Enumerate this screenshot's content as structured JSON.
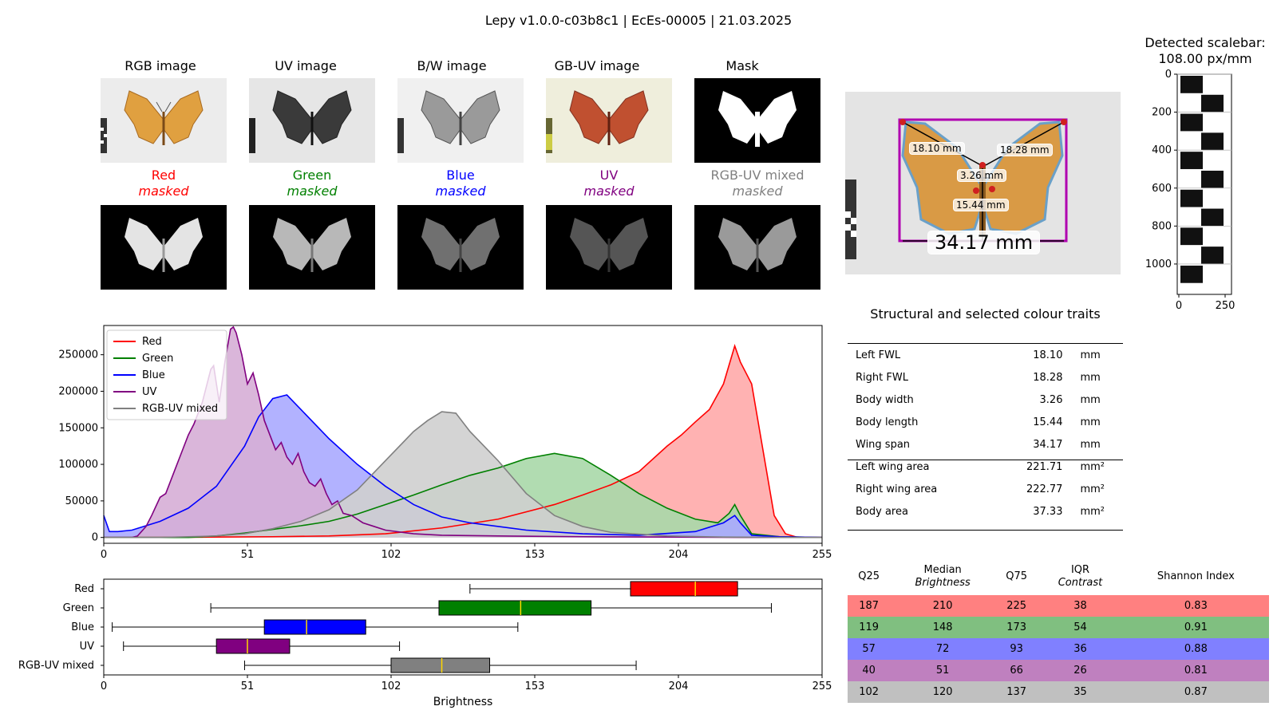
{
  "header": {
    "title": "Lepy v1.0.0-c03b8c1 | EcEs-00005 | 21.03.2025"
  },
  "image_panels": {
    "rgb": "RGB image",
    "uv": "UV image",
    "bw": "B/W image",
    "gbuv": "GB-UV image",
    "mask": "Mask"
  },
  "masked_panels": [
    {
      "name": "Red",
      "sub": "masked",
      "color": "#ff0000"
    },
    {
      "name": "Green",
      "sub": "masked",
      "color": "#008000"
    },
    {
      "name": "Blue",
      "sub": "masked",
      "color": "#0000ff"
    },
    {
      "name": "UV",
      "sub": "masked",
      "color": "#800080"
    },
    {
      "name": "RGB-UV mixed",
      "sub": "masked",
      "color": "#808080"
    }
  ],
  "measurement_overlay": {
    "labels": [
      "18.10 mm",
      "18.28 mm",
      "3.26 mm",
      "15.44 mm",
      "34.17 mm"
    ]
  },
  "scalebar": {
    "title_line1": "Detected scalebar:",
    "title_line2": "108.00 px/mm",
    "y_ticks": [
      "0",
      "200",
      "400",
      "600",
      "800",
      "1000"
    ],
    "x_ticks": [
      "0",
      "250"
    ]
  },
  "traits": {
    "title": "Structural and selected colour traits",
    "rows": [
      {
        "label": "Left FWL",
        "value": "18.10",
        "unit": "mm"
      },
      {
        "label": "Right FWL",
        "value": "18.28",
        "unit": "mm"
      },
      {
        "label": "Body width",
        "value": "3.26",
        "unit": "mm"
      },
      {
        "label": "Body length",
        "value": "15.44",
        "unit": "mm"
      },
      {
        "label": "Wing span",
        "value": "34.17",
        "unit": "mm"
      },
      {
        "label": "Left wing area",
        "value": "221.71",
        "unit": "mm²"
      },
      {
        "label": "Right wing area",
        "value": "222.77",
        "unit": "mm²"
      },
      {
        "label": "Body area",
        "value": "37.33",
        "unit": "mm²"
      }
    ]
  },
  "stats_table": {
    "headers": [
      {
        "line1": "Q25",
        "line2": ""
      },
      {
        "line1": "Median",
        "line2": "Brightness"
      },
      {
        "line1": "Q75",
        "line2": ""
      },
      {
        "line1": "IQR",
        "line2": "Contrast"
      },
      {
        "line1": "Shannon Index",
        "line2": ""
      }
    ],
    "rows": [
      {
        "color": "#ff8080",
        "cells": [
          "187",
          "210",
          "225",
          "38",
          "0.83"
        ]
      },
      {
        "color": "#80bf80",
        "cells": [
          "119",
          "148",
          "173",
          "54",
          "0.91"
        ]
      },
      {
        "color": "#8080ff",
        "cells": [
          "57",
          "72",
          "93",
          "36",
          "0.88"
        ]
      },
      {
        "color": "#bf80bf",
        "cells": [
          "40",
          "51",
          "66",
          "26",
          "0.81"
        ]
      },
      {
        "color": "#c0c0c0",
        "cells": [
          "102",
          "120",
          "137",
          "35",
          "0.87"
        ]
      }
    ]
  },
  "chart_data": [
    {
      "type": "area",
      "xlim": [
        0,
        255
      ],
      "ylim": [
        -8000,
        290000
      ],
      "x_ticks": [
        0,
        51,
        102,
        153,
        204,
        255
      ],
      "y_ticks": [
        0,
        50000,
        100000,
        150000,
        200000,
        250000
      ],
      "legend_position": "top-left",
      "series": [
        {
          "name": "Red",
          "color": "#ff0000",
          "fill": "#ffaaaa",
          "x": [
            0,
            20,
            40,
            60,
            80,
            100,
            120,
            140,
            160,
            170,
            180,
            190,
            200,
            205,
            210,
            215,
            220,
            224,
            226,
            230,
            234,
            238,
            242,
            246,
            250,
            255
          ],
          "y": [
            0,
            0,
            500,
            1000,
            2000,
            5000,
            13000,
            25000,
            45000,
            58000,
            72000,
            90000,
            125000,
            140000,
            158000,
            175000,
            210000,
            262000,
            240000,
            210000,
            120000,
            30000,
            5000,
            500,
            0,
            0
          ]
        },
        {
          "name": "Green",
          "color": "#008000",
          "fill": "#a8d8a8",
          "x": [
            0,
            20,
            30,
            40,
            50,
            60,
            70,
            80,
            90,
            100,
            110,
            120,
            130,
            140,
            150,
            160,
            170,
            180,
            190,
            200,
            210,
            218,
            222,
            224,
            226,
            230,
            240,
            255
          ],
          "y": [
            0,
            0,
            0,
            2000,
            6000,
            11000,
            16000,
            22000,
            32000,
            45000,
            58000,
            72000,
            85000,
            95000,
            108000,
            115000,
            108000,
            85000,
            60000,
            40000,
            25000,
            20000,
            33000,
            45000,
            30000,
            5000,
            1000,
            0
          ]
        },
        {
          "name": "Blue",
          "color": "#0000ff",
          "fill": "#aaaaff",
          "x": [
            0,
            2,
            5,
            10,
            20,
            30,
            40,
            50,
            55,
            60,
            65,
            70,
            75,
            80,
            90,
            100,
            110,
            120,
            130,
            150,
            170,
            190,
            210,
            220,
            224,
            226,
            230,
            240,
            255
          ],
          "y": [
            30000,
            8000,
            8000,
            10000,
            22000,
            40000,
            70000,
            125000,
            165000,
            190000,
            195000,
            175000,
            155000,
            135000,
            100000,
            70000,
            45000,
            28000,
            20000,
            10000,
            5000,
            3000,
            8000,
            20000,
            30000,
            20000,
            3000,
            1000,
            0
          ]
        },
        {
          "name": "UV",
          "color": "#800080",
          "fill": "#d6aed6",
          "x": [
            0,
            10,
            12,
            15,
            17,
            20,
            22,
            25,
            28,
            30,
            32,
            35,
            38,
            39,
            41,
            43,
            45,
            46,
            47,
            49,
            51,
            53,
            55,
            57,
            59,
            61,
            63,
            65,
            67,
            69,
            71,
            73,
            75,
            77,
            79,
            81,
            83,
            85,
            88,
            92,
            96,
            100,
            110,
            120,
            140,
            170,
            200,
            230,
            255
          ],
          "y": [
            0,
            0,
            2000,
            15000,
            30000,
            55000,
            60000,
            90000,
            120000,
            140000,
            155000,
            185000,
            230000,
            235000,
            185000,
            240000,
            285000,
            288000,
            280000,
            250000,
            210000,
            225000,
            195000,
            160000,
            140000,
            120000,
            130000,
            110000,
            100000,
            115000,
            90000,
            75000,
            70000,
            80000,
            60000,
            45000,
            50000,
            33000,
            30000,
            20000,
            15000,
            10000,
            5000,
            3000,
            2000,
            1000,
            500,
            0,
            0
          ]
        },
        {
          "name": "RGB-UV mixed",
          "color": "#808080",
          "fill": "#cfcfcf",
          "x": [
            0,
            20,
            40,
            50,
            60,
            70,
            80,
            90,
            100,
            110,
            115,
            120,
            125,
            130,
            140,
            150,
            160,
            170,
            180,
            200,
            220,
            240,
            255
          ],
          "y": [
            0,
            0,
            2000,
            5000,
            12000,
            22000,
            38000,
            65000,
            105000,
            145000,
            160000,
            172000,
            170000,
            145000,
            105000,
            60000,
            30000,
            15000,
            7000,
            2000,
            500,
            0,
            0
          ]
        }
      ]
    },
    {
      "type": "box",
      "xlim": [
        0,
        255
      ],
      "x_ticks": [
        0,
        51,
        102,
        153,
        204,
        255
      ],
      "xlabel": "Brightness",
      "categories": [
        "Red",
        "Green",
        "Blue",
        "UV",
        "RGB-UV mixed"
      ],
      "boxes": [
        {
          "name": "Red",
          "whisker_low": 130,
          "q1": 187,
          "median": 210,
          "q3": 225,
          "whisker_high": 255,
          "color": "#ff0000"
        },
        {
          "name": "Green",
          "whisker_low": 38,
          "q1": 119,
          "median": 148,
          "q3": 173,
          "whisker_high": 237,
          "color": "#008000"
        },
        {
          "name": "Blue",
          "whisker_low": 3,
          "q1": 57,
          "median": 72,
          "q3": 93,
          "whisker_high": 147,
          "color": "#0000ff"
        },
        {
          "name": "UV",
          "whisker_low": 7,
          "q1": 40,
          "median": 51,
          "q3": 66,
          "whisker_high": 105,
          "color": "#800080"
        },
        {
          "name": "RGB-UV mixed",
          "whisker_low": 50,
          "q1": 102,
          "median": 120,
          "q3": 137,
          "whisker_high": 189,
          "color": "#808080"
        }
      ]
    }
  ]
}
